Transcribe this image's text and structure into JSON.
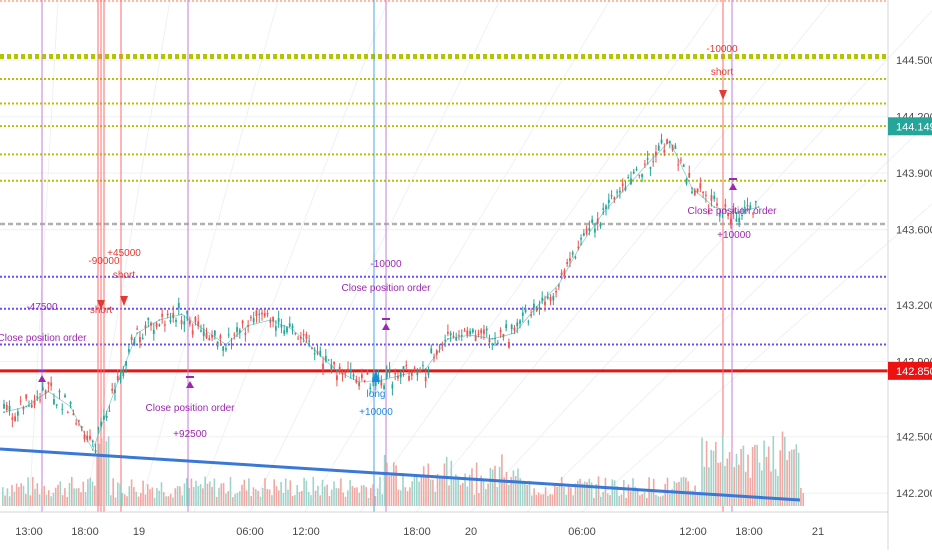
{
  "chart_data": {
    "type": "line",
    "title": "",
    "xlabel": "",
    "ylabel": "",
    "ylim": [
      142.1,
      144.82
    ],
    "grid": true,
    "price_axis": {
      "ticks": [
        "144.500",
        "144.200",
        "143.900",
        "143.600",
        "143.200",
        "142.900",
        "142.500",
        "142.200"
      ],
      "current_price": "144.149",
      "current_color": "#26a69a",
      "reference_price": "142.850",
      "reference_color": "#ee1111"
    },
    "time_axis": {
      "ticks": [
        "13:00",
        "18:00",
        "19",
        "06:00",
        "12:00",
        "18:00",
        "20",
        "06:00",
        "12:00",
        "18:00",
        "21"
      ]
    },
    "series": [
      {
        "color": "#26a69a",
        "x": [
          0,
          2,
          4,
          6,
          8,
          10,
          12,
          14,
          16,
          18,
          20,
          22,
          24,
          26,
          28,
          30,
          32,
          34,
          36,
          38,
          40,
          42,
          44,
          46,
          48,
          50,
          52,
          54,
          56,
          58,
          60,
          62,
          64,
          66,
          68
        ],
        "y": [
          142.63,
          142.66,
          142.74,
          142.66,
          142.43,
          142.75,
          143.05,
          143.12,
          143.15,
          143.07,
          142.99,
          143.09,
          143.12,
          143.07,
          142.96,
          142.85,
          142.79,
          142.8,
          142.83,
          142.86,
          143.02,
          143.04,
          143.02,
          143.05,
          143.19,
          143.31,
          143.52,
          143.69,
          143.82,
          143.95,
          144.07,
          143.82,
          143.72,
          143.69,
          143.72
        ]
      }
    ],
    "horizontal_levels": [
      {
        "value": 144.52,
        "color": "#b5c400",
        "style": "dotted"
      },
      {
        "value": 144.4,
        "color": "#b5c400",
        "style": "dotted"
      },
      {
        "value": 144.27,
        "color": "#b5c400",
        "style": "dotted"
      },
      {
        "value": 144.15,
        "color": "#b5c400",
        "style": "dotted"
      },
      {
        "value": 144.0,
        "color": "#b5c400",
        "style": "dotted"
      },
      {
        "value": 143.86,
        "color": "#b5c400",
        "style": "dotted"
      },
      {
        "value": 143.63,
        "color": "#b0b0b0",
        "style": "dashed"
      },
      {
        "value": 143.35,
        "color": "#6a4cff",
        "style": "dotted"
      },
      {
        "value": 143.18,
        "color": "#6a4cff",
        "style": "dotted"
      },
      {
        "value": 142.99,
        "color": "#6a4cff",
        "style": "dotted"
      },
      {
        "value": 142.85,
        "color": "#ee1111",
        "style": "solid"
      }
    ],
    "annotations": [
      {
        "text": "-47500",
        "color": "#9c27b0"
      },
      {
        "text": "Close position order",
        "color": "#9c27b0"
      },
      {
        "text": "-90000",
        "color": "#e53935"
      },
      {
        "text": "+45000",
        "color": "#e53935"
      },
      {
        "text": "short",
        "color": "#e53935"
      },
      {
        "text": "short",
        "color": "#e53935"
      },
      {
        "text": "Close position order",
        "color": "#9c27b0"
      },
      {
        "text": "+92500",
        "color": "#9c27b0"
      },
      {
        "text": "-10000",
        "color": "#9c27b0"
      },
      {
        "text": "Close position order",
        "color": "#9c27b0"
      },
      {
        "text": "long",
        "color": "#1e88e5"
      },
      {
        "text": "+10000",
        "color": "#1e88e5"
      },
      {
        "text": "-10000",
        "color": "#e53935"
      },
      {
        "text": "short",
        "color": "#e53935"
      },
      {
        "text": "Close position order",
        "color": "#9c27b0"
      },
      {
        "text": "+10000",
        "color": "#9c27b0"
      }
    ]
  }
}
